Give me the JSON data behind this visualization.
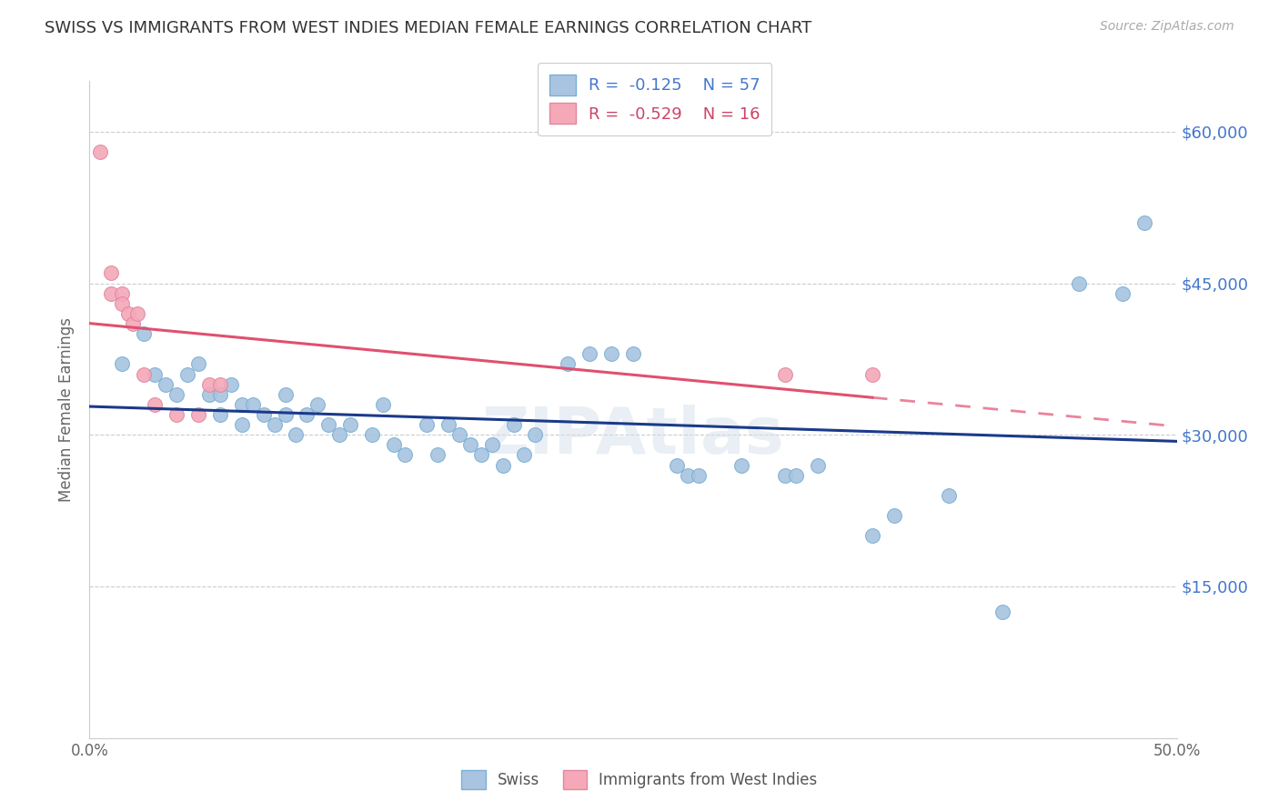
{
  "title": "SWISS VS IMMIGRANTS FROM WEST INDIES MEDIAN FEMALE EARNINGS CORRELATION CHART",
  "source": "Source: ZipAtlas.com",
  "ylabel": "Median Female Earnings",
  "x_min": 0.0,
  "x_max": 0.5,
  "y_min": 0,
  "y_max": 65000,
  "swiss_color": "#a8c4e0",
  "swiss_edge_color": "#7aafd4",
  "wi_color": "#f4a8b8",
  "wi_edge_color": "#e088a0",
  "swiss_line_color": "#1a3a8a",
  "wi_line_color": "#e05070",
  "grid_color": "#cccccc",
  "right_label_color": "#4477cc",
  "watermark_color": "#d0dde8",
  "swiss_x": [
    0.015,
    0.025,
    0.03,
    0.035,
    0.04,
    0.045,
    0.05,
    0.055,
    0.06,
    0.06,
    0.065,
    0.07,
    0.07,
    0.075,
    0.08,
    0.085,
    0.09,
    0.09,
    0.095,
    0.1,
    0.105,
    0.11,
    0.115,
    0.12,
    0.13,
    0.135,
    0.14,
    0.145,
    0.155,
    0.16,
    0.165,
    0.17,
    0.175,
    0.18,
    0.185,
    0.19,
    0.195,
    0.2,
    0.205,
    0.22,
    0.23,
    0.24,
    0.25,
    0.27,
    0.275,
    0.28,
    0.3,
    0.32,
    0.325,
    0.335,
    0.36,
    0.37,
    0.395,
    0.42,
    0.455,
    0.475,
    0.485
  ],
  "swiss_y": [
    37000,
    40000,
    36000,
    35000,
    34000,
    36000,
    37000,
    34000,
    34000,
    32000,
    35000,
    33000,
    31000,
    33000,
    32000,
    31000,
    34000,
    32000,
    30000,
    32000,
    33000,
    31000,
    30000,
    31000,
    30000,
    33000,
    29000,
    28000,
    31000,
    28000,
    31000,
    30000,
    29000,
    28000,
    29000,
    27000,
    31000,
    28000,
    30000,
    37000,
    38000,
    38000,
    38000,
    27000,
    26000,
    26000,
    27000,
    26000,
    26000,
    27000,
    20000,
    22000,
    24000,
    12500,
    45000,
    44000,
    51000
  ],
  "wi_x": [
    0.005,
    0.01,
    0.01,
    0.015,
    0.015,
    0.018,
    0.02,
    0.022,
    0.025,
    0.03,
    0.04,
    0.05,
    0.055,
    0.06,
    0.32,
    0.36
  ],
  "wi_y": [
    58000,
    46000,
    44000,
    44000,
    43000,
    42000,
    41000,
    42000,
    36000,
    33000,
    32000,
    32000,
    35000,
    35000,
    36000,
    36000
  ]
}
